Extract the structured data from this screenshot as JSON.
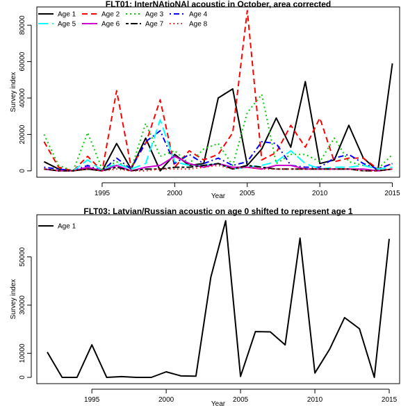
{
  "chart_data": [
    {
      "type": "line",
      "title": "FLT01:   InterNAtioNAl acoustic in October, area corrected",
      "xlabel": "Year",
      "ylabel": "Survey index",
      "xlim": [
        1990.5,
        2015.5
      ],
      "ylim": [
        -3500,
        90000
      ],
      "xticks": [
        1995,
        2000,
        2005,
        2010,
        2015
      ],
      "yticks": [
        0,
        20000,
        40000,
        60000,
        80000
      ],
      "legend_position": "top-left",
      "x": [
        1991,
        1992,
        1993,
        1994,
        1995,
        1996,
        1997,
        1998,
        1999,
        2000,
        2001,
        2002,
        2003,
        2004,
        2005,
        2006,
        2007,
        2008,
        2009,
        2010,
        2011,
        2012,
        2013,
        2014,
        2015
      ],
      "series": [
        {
          "name": "Age 1",
          "color": "#000000",
          "dash": "solid",
          "values": [
            5000,
            1000,
            0,
            1000,
            0,
            15000,
            1000,
            18000,
            0,
            9000,
            3000,
            4000,
            40000,
            45000,
            3000,
            12000,
            29000,
            13000,
            49000,
            4000,
            6000,
            25000,
            7000,
            0,
            59000
          ]
        },
        {
          "name": "Age 2",
          "color": "#ff0000",
          "dash": "dashed",
          "values": [
            16000,
            2000,
            0,
            8000,
            0,
            44000,
            2000,
            15000,
            39000,
            2000,
            11000,
            6000,
            9000,
            21000,
            88000,
            6000,
            10000,
            25000,
            13000,
            29000,
            5000,
            7000,
            7000,
            1000,
            4000
          ]
        },
        {
          "name": "Age 3",
          "color": "#00cd00",
          "dash": "dotted",
          "values": [
            20000,
            3000,
            0,
            21000,
            1000,
            5000,
            1000,
            26000,
            8000,
            11000,
            4000,
            12000,
            15000,
            3000,
            32000,
            42000,
            4000,
            9000,
            9000,
            5000,
            18000,
            5000,
            3000,
            1000,
            9000
          ]
        },
        {
          "name": "Age 4",
          "color": "#0000ff",
          "dash": "dotdash",
          "values": [
            2000,
            1000,
            0,
            3000,
            0,
            7000,
            1000,
            16000,
            22000,
            4000,
            9000,
            4000,
            7000,
            3000,
            5000,
            16000,
            15000,
            3000,
            2000,
            2000,
            7000,
            9000,
            4000,
            1000,
            4000
          ]
        },
        {
          "name": "Age 5",
          "color": "#00ffff",
          "dash": "longdash",
          "values": [
            1000,
            0,
            0,
            6000,
            0,
            4000,
            1000,
            4000,
            28000,
            5000,
            3000,
            3000,
            4000,
            1000,
            2000,
            3000,
            5000,
            11000,
            4000,
            1000,
            2000,
            2000,
            3000,
            1000,
            2000
          ]
        },
        {
          "name": "Age 6",
          "color": "#cc00cc",
          "dash": "solid",
          "values": [
            1000,
            0,
            0,
            2000,
            0,
            3000,
            0,
            2000,
            3000,
            8000,
            4000,
            2000,
            4000,
            2000,
            2000,
            1000,
            3000,
            3000,
            1000,
            1000,
            1000,
            1000,
            1000,
            0,
            1000
          ]
        },
        {
          "name": "Age 7",
          "color": "#000000",
          "dash": "twodash",
          "values": [
            1000,
            0,
            0,
            1000,
            0,
            2000,
            0,
            1000,
            1000,
            2000,
            2000,
            3000,
            4000,
            1000,
            3000,
            2000,
            1000,
            1000,
            1000,
            1000,
            1000,
            1000,
            0,
            0,
            1000
          ]
        },
        {
          "name": "Age 8",
          "color": "#ff0000",
          "dash": "dotted2",
          "values": [
            1000,
            0,
            0,
            1000,
            0,
            1000,
            0,
            0,
            1000,
            1000,
            1000,
            2000,
            3000,
            1000,
            2000,
            1000,
            1000,
            1000,
            1000,
            1000,
            1000,
            1000,
            0,
            0,
            1000
          ]
        }
      ]
    },
    {
      "type": "line",
      "title": "FLT03: Latvian/Russian acoustic on age 0 shifted to represent age 1",
      "xlabel": "Year",
      "ylabel": "Survey index",
      "xlim": [
        1991.3,
        2015.7
      ],
      "ylim": [
        -2600,
        67500
      ],
      "xticks": [
        1995,
        2000,
        2005,
        2010,
        2015
      ],
      "yticks": [
        0,
        10000,
        30000,
        50000
      ],
      "legend_position": "top-left",
      "x": [
        1992,
        1993,
        1994,
        1995,
        1996,
        1997,
        1998,
        1999,
        2000,
        2001,
        2002,
        2003,
        2004,
        2005,
        2006,
        2007,
        2008,
        2009,
        2010,
        2011,
        2012,
        2013,
        2014,
        2015
      ],
      "series": [
        {
          "name": "Age 1",
          "color": "#000000",
          "dash": "solid",
          "values": [
            10500,
            0,
            0,
            13500,
            0,
            300,
            0,
            0,
            2300,
            600,
            500,
            41500,
            65000,
            400,
            19000,
            18900,
            13500,
            57800,
            1800,
            11800,
            24800,
            20200,
            0,
            57500
          ]
        }
      ]
    }
  ]
}
